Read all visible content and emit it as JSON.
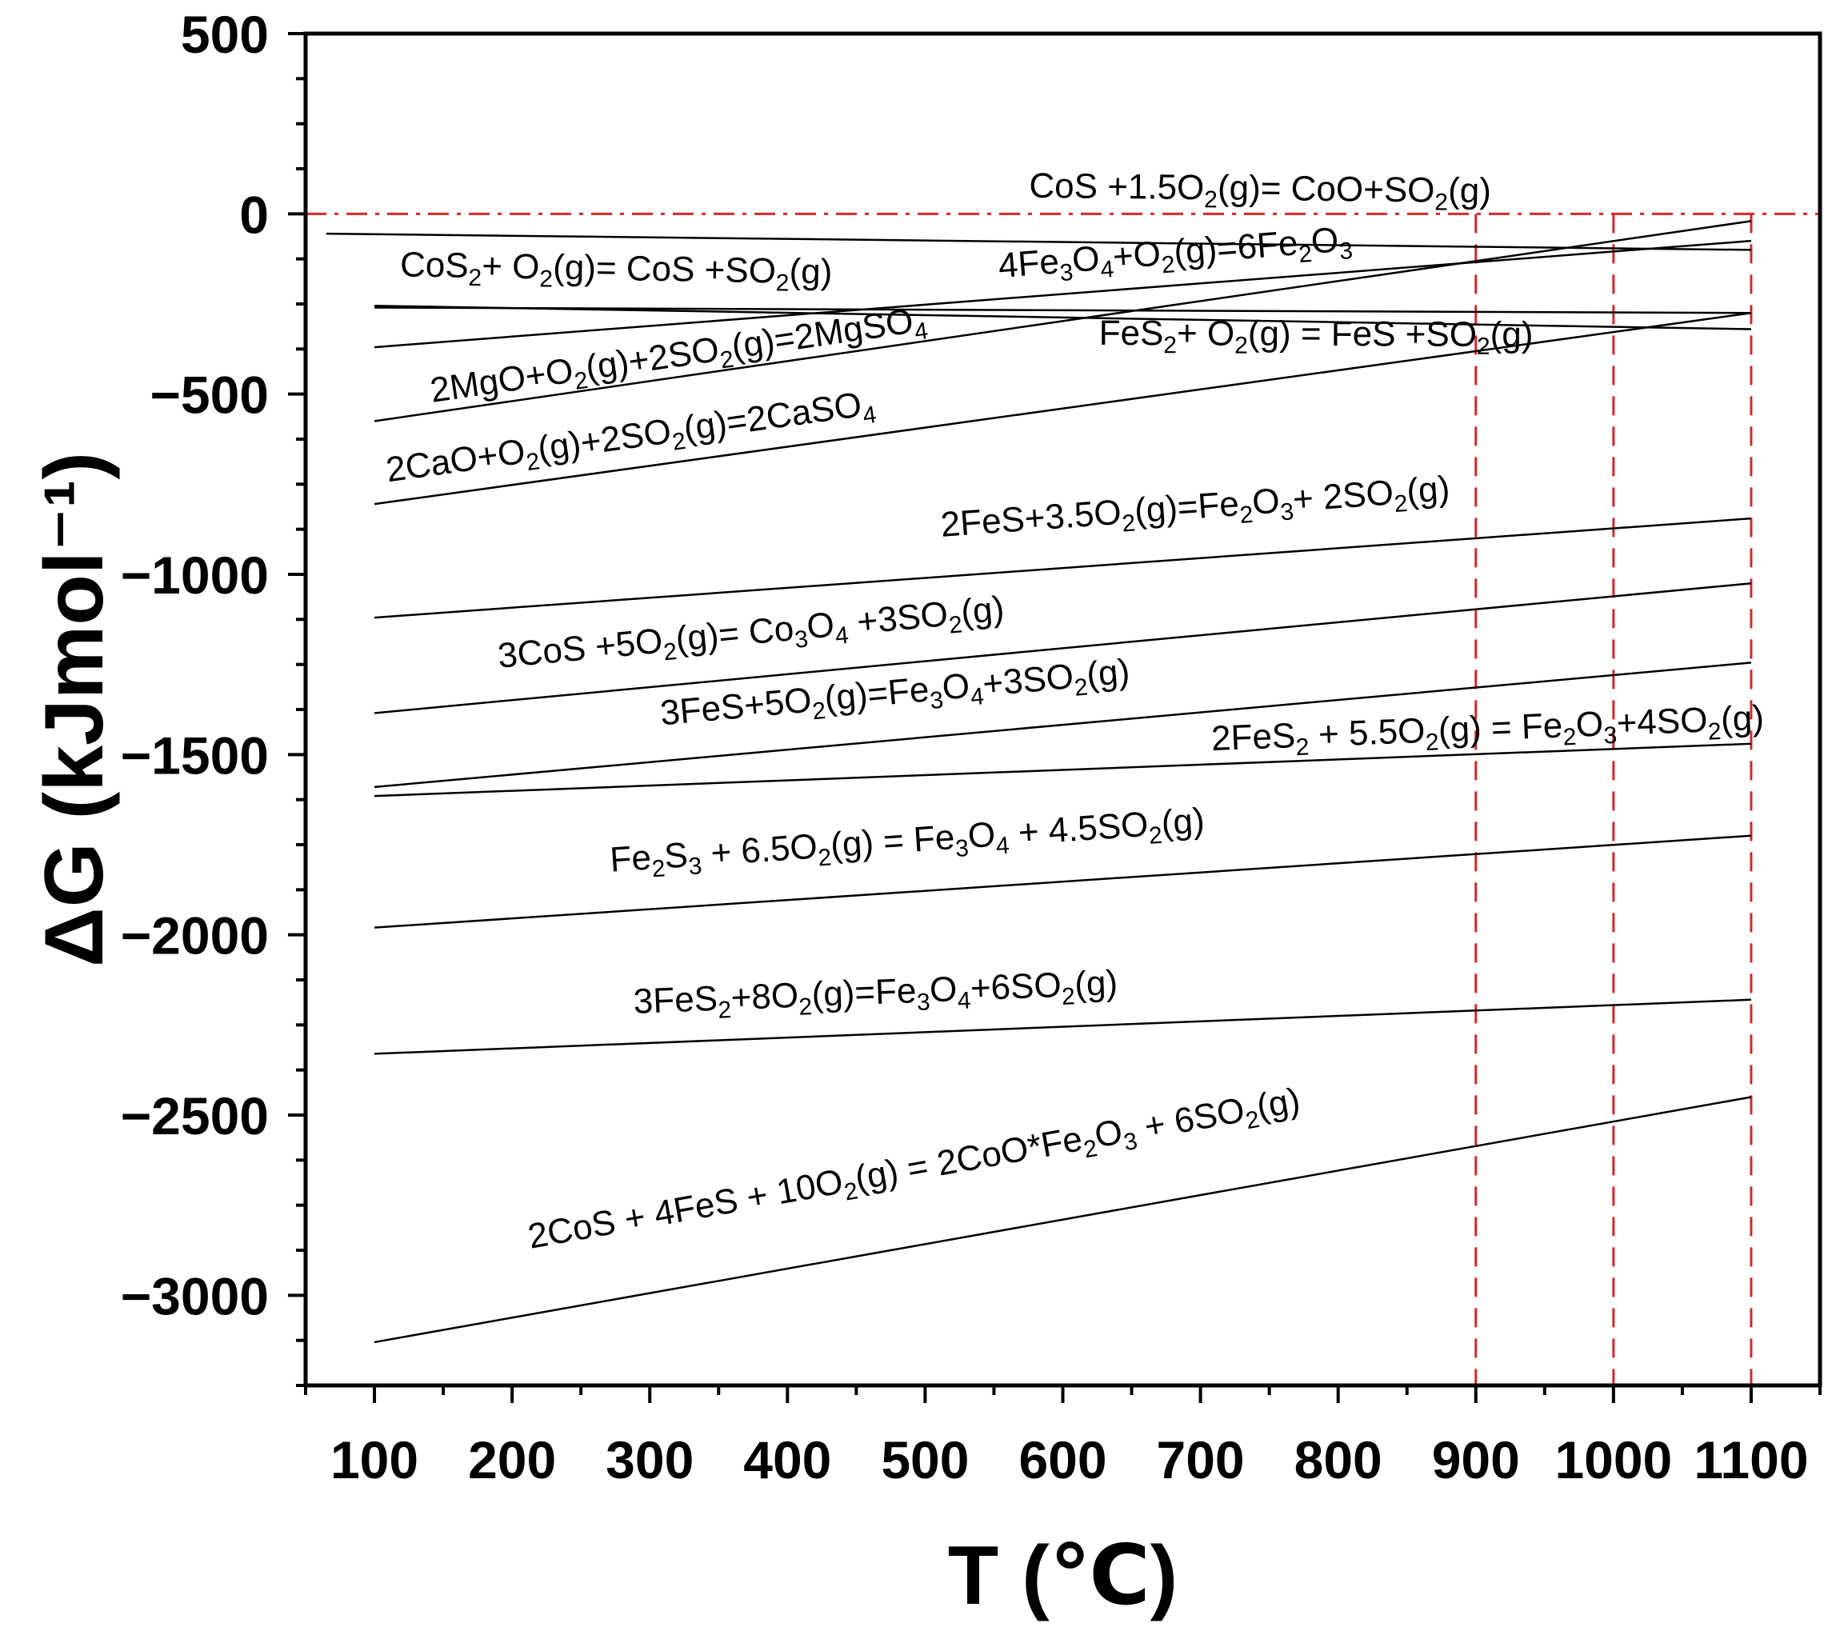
{
  "chart_data": {
    "type": "line",
    "xlabel": "T (℃)",
    "ylabel": "ΔG (kJmol⁻¹)",
    "xlim": [
      50,
      1150
    ],
    "ylim": [
      -3250,
      500
    ],
    "x_ticks": [
      100,
      200,
      300,
      400,
      500,
      600,
      700,
      800,
      900,
      1000,
      1100
    ],
    "y_ticks": [
      500,
      0,
      -500,
      -1000,
      -1500,
      -2000,
      -2500,
      -3000
    ],
    "x_tick_labels": [
      "100",
      "200",
      "300",
      "400",
      "500",
      "600",
      "700",
      "800",
      "900",
      "1000",
      "1100"
    ],
    "y_tick_labels": [
      "500",
      "0",
      "−500",
      "−1000",
      "−1500",
      "−2000",
      "−2500",
      "−3000"
    ],
    "grid": false,
    "reference_lines": [
      {
        "orientation": "horizontal",
        "value": 0,
        "style": "dash-dot",
        "color": "#d62728"
      },
      {
        "orientation": "vertical",
        "value": 900,
        "style": "dashed",
        "color": "#d62728"
      },
      {
        "orientation": "vertical",
        "value": 1000,
        "style": "dashed",
        "color": "#d62728"
      },
      {
        "orientation": "vertical",
        "value": 1100,
        "style": "dashed",
        "color": "#d62728"
      }
    ],
    "series": [
      {
        "name": "CoS +1.5O2(g)= CoO+SO2(g)",
        "x": [
          65,
          1100
        ],
        "y": [
          -55,
          -100
        ],
        "label_segments": [
          [
            "CoS +1.5O",
            ""
          ],
          [
            "2",
            "s"
          ],
          [
            "(g)= CoO+SO",
            ""
          ],
          [
            "2",
            "s"
          ],
          [
            "(g)",
            ""
          ]
        ]
      },
      {
        "name": "4Fe3O4+O2(g)=6Fe2O3",
        "x": [
          100,
          1100
        ],
        "y": [
          -370,
          -75
        ],
        "label_segments": [
          [
            "4Fe",
            ""
          ],
          [
            "3",
            "s"
          ],
          [
            "O",
            ""
          ],
          [
            "4",
            "s"
          ],
          [
            "+O",
            ""
          ],
          [
            "2",
            "s"
          ],
          [
            "(g)=6Fe",
            ""
          ],
          [
            "2",
            "s"
          ],
          [
            "O",
            ""
          ],
          [
            "3",
            "s"
          ]
        ]
      },
      {
        "name": "CoS2+ O2(g)= CoS +SO2(g)",
        "x": [
          100,
          1100
        ],
        "y": [
          -255,
          -320
        ],
        "label_segments": [
          [
            "CoS",
            ""
          ],
          [
            "2",
            "s"
          ],
          [
            "+ O",
            ""
          ],
          [
            "2",
            "s"
          ],
          [
            "(g)= CoS +SO",
            ""
          ],
          [
            "2",
            "s"
          ],
          [
            "(g)",
            ""
          ]
        ]
      },
      {
        "name": "FeS2+ O2(g) = FeS +SO2(g)",
        "x": [
          100,
          1100
        ],
        "y": [
          -260,
          -275
        ],
        "label_segments": [
          [
            "FeS",
            ""
          ],
          [
            "2",
            "s"
          ],
          [
            "+ O",
            ""
          ],
          [
            "2",
            "s"
          ],
          [
            "(g) = FeS +SO",
            ""
          ],
          [
            "2",
            "s"
          ],
          [
            "(g)",
            ""
          ]
        ]
      },
      {
        "name": "2MgO+O2(g)+2SO2(g)=2MgSO4",
        "x": [
          100,
          1100
        ],
        "y": [
          -575,
          -20
        ],
        "label_segments": [
          [
            "2MgO+O",
            ""
          ],
          [
            "2",
            "s"
          ],
          [
            "(g)+2SO",
            ""
          ],
          [
            "2",
            "s"
          ],
          [
            "(g)=2MgSO",
            ""
          ],
          [
            "4",
            "s"
          ]
        ]
      },
      {
        "name": "2CaO+O2(g)+2SO2(g)=2CaSO4",
        "x": [
          100,
          1100
        ],
        "y": [
          -805,
          -275
        ],
        "label_segments": [
          [
            "2CaO+O",
            ""
          ],
          [
            "2",
            "s"
          ],
          [
            "(g)+2SO",
            ""
          ],
          [
            "2",
            "s"
          ],
          [
            "(g)=2CaSO",
            ""
          ],
          [
            "4",
            "s"
          ]
        ]
      },
      {
        "name": "2FeS+3.5O2(g)=Fe2O3+ 2SO2(g)",
        "x": [
          100,
          1100
        ],
        "y": [
          -1120,
          -845
        ],
        "label_segments": [
          [
            "2FeS+3.5O",
            ""
          ],
          [
            "2",
            "s"
          ],
          [
            "(g)=Fe",
            ""
          ],
          [
            "2",
            "s"
          ],
          [
            "O",
            ""
          ],
          [
            "3",
            "s"
          ],
          [
            "+ 2SO",
            ""
          ],
          [
            "2",
            "s"
          ],
          [
            "(g)",
            ""
          ]
        ]
      },
      {
        "name": "3CoS +5O2(g)= Co3O4 +3SO2(g)",
        "x": [
          100,
          1100
        ],
        "y": [
          -1385,
          -1025
        ],
        "label_segments": [
          [
            "3CoS +5O",
            ""
          ],
          [
            "2",
            "s"
          ],
          [
            "(g)= Co",
            ""
          ],
          [
            "3",
            "s"
          ],
          [
            "O",
            ""
          ],
          [
            "4",
            "s"
          ],
          [
            " +3SO",
            ""
          ],
          [
            "2",
            "s"
          ],
          [
            "(g)",
            ""
          ]
        ]
      },
      {
        "name": "3FeS+5O2(g)=Fe3O4+3SO2(g)",
        "x": [
          100,
          1100
        ],
        "y": [
          -1590,
          -1245
        ],
        "label_segments": [
          [
            "3FeS+5O",
            ""
          ],
          [
            "2",
            "s"
          ],
          [
            "(g)=Fe",
            ""
          ],
          [
            "3",
            "s"
          ],
          [
            "O",
            ""
          ],
          [
            "4",
            "s"
          ],
          [
            "+3SO",
            ""
          ],
          [
            "2",
            "s"
          ],
          [
            "(g)",
            ""
          ]
        ]
      },
      {
        "name": "2FeS2 + 5.5O2(g) = Fe2O3+4SO2(g)",
        "x": [
          100,
          1100
        ],
        "y": [
          -1615,
          -1470
        ],
        "label_segments": [
          [
            "2FeS",
            ""
          ],
          [
            "2",
            "s"
          ],
          [
            " + 5.5O",
            ""
          ],
          [
            "2",
            "s"
          ],
          [
            "(g) = Fe",
            ""
          ],
          [
            "2",
            "s"
          ],
          [
            "O",
            ""
          ],
          [
            "3",
            "s"
          ],
          [
            "+4SO",
            ""
          ],
          [
            "2",
            "s"
          ],
          [
            "(g)",
            ""
          ]
        ]
      },
      {
        "name": "Fe2S3 + 6.5O2(g) = Fe3O4 + 4.5SO2(g)",
        "x": [
          100,
          1100
        ],
        "y": [
          -1980,
          -1725
        ],
        "label_segments": [
          [
            "Fe",
            ""
          ],
          [
            "2",
            "s"
          ],
          [
            "S",
            ""
          ],
          [
            "3",
            "s"
          ],
          [
            " + 6.5O",
            ""
          ],
          [
            "2",
            "s"
          ],
          [
            "(g) = Fe",
            ""
          ],
          [
            "3",
            "s"
          ],
          [
            "O",
            ""
          ],
          [
            "4",
            "s"
          ],
          [
            " + 4.5SO",
            ""
          ],
          [
            "2",
            "s"
          ],
          [
            "(g)",
            ""
          ]
        ]
      },
      {
        "name": "3FeS2+8O2(g)=Fe3O4+6SO2(g)",
        "x": [
          100,
          1100
        ],
        "y": [
          -2330,
          -2180
        ],
        "label_segments": [
          [
            "3FeS",
            ""
          ],
          [
            "2",
            "s"
          ],
          [
            "+8O",
            ""
          ],
          [
            "2",
            "s"
          ],
          [
            "(g)=Fe",
            ""
          ],
          [
            "3",
            "s"
          ],
          [
            "O",
            ""
          ],
          [
            "4",
            "s"
          ],
          [
            "+6SO",
            ""
          ],
          [
            "2",
            "s"
          ],
          [
            "(g)",
            ""
          ]
        ]
      },
      {
        "name": "2CoS + 4FeS + 10O2(g) = 2CoO*Fe2O3 + 6SO2(g)",
        "x": [
          100,
          1100
        ],
        "y": [
          -3130,
          -2450
        ],
        "label_segments": [
          [
            "2CoS + 4FeS + 10O",
            ""
          ],
          [
            "2",
            "s"
          ],
          [
            "(g) = 2CoO*Fe",
            ""
          ],
          [
            "2",
            "s"
          ],
          [
            "O",
            ""
          ],
          [
            "3",
            "s"
          ],
          [
            " + 6SO",
            ""
          ],
          [
            "2",
            "s"
          ],
          [
            "(g)",
            ""
          ]
        ]
      }
    ]
  }
}
